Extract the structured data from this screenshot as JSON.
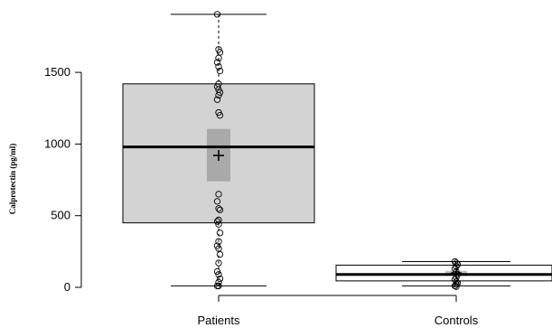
{
  "chart_data": {
    "type": "boxplot",
    "title": "",
    "xlabel": "",
    "ylabel": "Calprotectin (pg/ml)",
    "ylim": [
      0,
      1900
    ],
    "yticks": [
      0,
      500,
      1000,
      1500
    ],
    "categories": [
      "Patients",
      "Controls"
    ],
    "grid": false,
    "legend": "none",
    "boxes": [
      {
        "name": "Patients",
        "whisker_low": 10,
        "q1": 450,
        "median": 980,
        "q3": 1420,
        "whisker_high": 1905,
        "mean": 920,
        "ci_low": 740,
        "ci_high": 1105,
        "box_color": "#d3d3d3",
        "ci_color": "#a9a9a9",
        "points": [
          10,
          10,
          35,
          60,
          90,
          110,
          170,
          230,
          270,
          290,
          320,
          380,
          440,
          460,
          470,
          540,
          550,
          600,
          650,
          1200,
          1220,
          1310,
          1340,
          1360,
          1380,
          1400,
          1420,
          1510,
          1540,
          1570,
          1600,
          1640,
          1660,
          1905
        ]
      },
      {
        "name": "Controls",
        "whisker_low": 10,
        "q1": 45,
        "median": 90,
        "q3": 155,
        "whisker_high": 180,
        "mean": 100,
        "ci_low": 80,
        "ci_high": 115,
        "box_color": "#ffffff",
        "ci_color": "#c0c0c0",
        "points": [
          5,
          10,
          20,
          30,
          40,
          55,
          70,
          90,
          110,
          130,
          145,
          160,
          170,
          180
        ]
      }
    ]
  }
}
